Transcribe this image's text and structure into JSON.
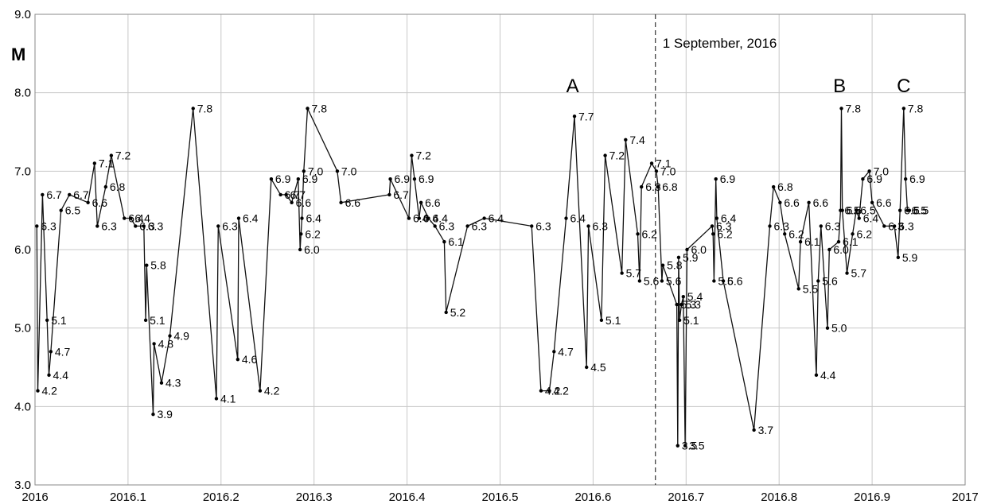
{
  "chart_data": {
    "type": "line",
    "ylabel": "M",
    "xlabel": "",
    "xlim": [
      2016,
      2017
    ],
    "ylim": [
      3.0,
      9.0
    ],
    "x_ticks": [
      "2016",
      "2016.1",
      "2016.2",
      "2016.3",
      "2016.4",
      "2016.5",
      "2016.6",
      "2016.7",
      "2016.8",
      "2016.9",
      "2017"
    ],
    "y_ticks": [
      "3.0",
      "4.0",
      "5.0",
      "6.0",
      "7.0",
      "8.0",
      "9.0"
    ],
    "grid": true,
    "vline": {
      "x": 2016.667,
      "label": "1 September, 2016"
    },
    "annotations": [
      {
        "text": "A",
        "x": 2016.578,
        "y": 8.0
      },
      {
        "text": "B",
        "x": 2016.865,
        "y": 8.0
      },
      {
        "text": "C",
        "x": 2016.934,
        "y": 8.0
      }
    ],
    "series": [
      {
        "points": [
          {
            "x": 2016.002,
            "y": 6.3,
            "label": "6.3"
          },
          {
            "x": 2016.003,
            "y": 4.2,
            "label": "4.2"
          },
          {
            "x": 2016.008,
            "y": 6.7,
            "label": "6.7"
          },
          {
            "x": 2016.013,
            "y": 5.1,
            "label": "5.1"
          },
          {
            "x": 2016.015,
            "y": 4.4,
            "label": "4.4"
          },
          {
            "x": 2016.017,
            "y": 4.7,
            "label": "4.7"
          },
          {
            "x": 2016.028,
            "y": 6.5,
            "label": "6.5"
          },
          {
            "x": 2016.037,
            "y": 6.7,
            "label": "6.7"
          },
          {
            "x": 2016.057,
            "y": 6.6,
            "label": "6.6"
          },
          {
            "x": 2016.064,
            "y": 7.1,
            "label": "7.1"
          },
          {
            "x": 2016.067,
            "y": 6.3,
            "label": "6.3"
          },
          {
            "x": 2016.076,
            "y": 6.8,
            "label": "6.8"
          },
          {
            "x": 2016.082,
            "y": 7.2,
            "label": "7.2"
          },
          {
            "x": 2016.096,
            "y": 6.4,
            "label": "6.4"
          },
          {
            "x": 2016.103,
            "y": 6.4,
            "label": "6.4"
          },
          {
            "x": 2016.108,
            "y": 6.3,
            "label": "6.3"
          },
          {
            "x": 2016.117,
            "y": 6.3,
            "label": "6.3"
          },
          {
            "x": 2016.119,
            "y": 5.1,
            "label": "5.1"
          },
          {
            "x": 2016.12,
            "y": 5.8,
            "label": "5.8"
          },
          {
            "x": 2016.127,
            "y": 3.9,
            "label": "3.9"
          },
          {
            "x": 2016.128,
            "y": 4.8,
            "label": "4.8"
          },
          {
            "x": 2016.136,
            "y": 4.3,
            "label": "4.3"
          },
          {
            "x": 2016.145,
            "y": 4.9,
            "label": "4.9"
          },
          {
            "x": 2016.17,
            "y": 7.8,
            "label": "7.8"
          },
          {
            "x": 2016.195,
            "y": 4.1,
            "label": "4.1"
          },
          {
            "x": 2016.197,
            "y": 6.3,
            "label": "6.3"
          },
          {
            "x": 2016.218,
            "y": 4.6,
            "label": "4.6"
          },
          {
            "x": 2016.219,
            "y": 6.4,
            "label": "6.4"
          },
          {
            "x": 2016.242,
            "y": 4.2,
            "label": "4.2"
          },
          {
            "x": 2016.254,
            "y": 6.9,
            "label": "6.9"
          },
          {
            "x": 2016.264,
            "y": 6.7,
            "label": "6.7"
          },
          {
            "x": 2016.27,
            "y": 6.7,
            "label": "6.7"
          },
          {
            "x": 2016.276,
            "y": 6.6,
            "label": "6.6"
          },
          {
            "x": 2016.283,
            "y": 6.9,
            "label": "6.9"
          },
          {
            "x": 2016.285,
            "y": 6.0,
            "label": "6.0"
          },
          {
            "x": 2016.286,
            "y": 6.2,
            "label": "6.2"
          },
          {
            "x": 2016.287,
            "y": 6.4,
            "label": "6.4"
          },
          {
            "x": 2016.289,
            "y": 7.0,
            "label": "7.0"
          },
          {
            "x": 2016.293,
            "y": 7.8,
            "label": "7.8"
          },
          {
            "x": 2016.325,
            "y": 7.0,
            "label": "7.0"
          },
          {
            "x": 2016.329,
            "y": 6.6,
            "label": "6.6"
          },
          {
            "x": 2016.381,
            "y": 6.7,
            "label": "6.7"
          },
          {
            "x": 2016.382,
            "y": 6.9,
            "label": "6.9"
          },
          {
            "x": 2016.402,
            "y": 6.4,
            "label": "6.4"
          },
          {
            "x": 2016.405,
            "y": 7.2,
            "label": "7.2"
          },
          {
            "x": 2016.408,
            "y": 6.9,
            "label": "6.9"
          },
          {
            "x": 2016.413,
            "y": 6.4,
            "label": "6.4"
          },
          {
            "x": 2016.415,
            "y": 6.6,
            "label": "6.6"
          },
          {
            "x": 2016.423,
            "y": 6.4,
            "label": "6.4"
          },
          {
            "x": 2016.43,
            "y": 6.3,
            "label": "6.3"
          },
          {
            "x": 2016.44,
            "y": 6.1,
            "label": "6.1"
          },
          {
            "x": 2016.442,
            "y": 5.2,
            "label": "5.2"
          },
          {
            "x": 2016.465,
            "y": 6.3,
            "label": "6.3"
          },
          {
            "x": 2016.483,
            "y": 6.4,
            "label": "6.4"
          },
          {
            "x": 2016.534,
            "y": 6.3,
            "label": "6.3"
          },
          {
            "x": 2016.544,
            "y": 4.2,
            "label": "4.2"
          },
          {
            "x": 2016.553,
            "y": 4.2,
            "label": "4.2"
          },
          {
            "x": 2016.558,
            "y": 4.7,
            "label": "4.7"
          },
          {
            "x": 2016.571,
            "y": 6.4,
            "label": "6.4"
          },
          {
            "x": 2016.58,
            "y": 7.7,
            "label": "7.7"
          },
          {
            "x": 2016.593,
            "y": 4.5,
            "label": "4.5"
          },
          {
            "x": 2016.595,
            "y": 6.3,
            "label": "6.3"
          },
          {
            "x": 2016.609,
            "y": 5.1,
            "label": "5.1"
          },
          {
            "x": 2016.613,
            "y": 7.2,
            "label": "7.2"
          },
          {
            "x": 2016.631,
            "y": 5.7,
            "label": "5.7"
          },
          {
            "x": 2016.635,
            "y": 7.4,
            "label": "7.4"
          },
          {
            "x": 2016.648,
            "y": 6.2,
            "label": "6.2"
          },
          {
            "x": 2016.65,
            "y": 5.6,
            "label": "5.6"
          },
          {
            "x": 2016.652,
            "y": 6.8,
            "label": "6.8"
          },
          {
            "x": 2016.663,
            "y": 7.1,
            "label": "7.1"
          },
          {
            "x": 2016.668,
            "y": 7.0,
            "label": "7.0"
          },
          {
            "x": 2016.67,
            "y": 6.8,
            "label": "6.8"
          },
          {
            "x": 2016.674,
            "y": 5.6,
            "label": "5.6"
          },
          {
            "x": 2016.675,
            "y": 5.8,
            "label": "5.8"
          },
          {
            "x": 2016.69,
            "y": 5.3,
            "label": "5.3"
          },
          {
            "x": 2016.691,
            "y": 3.5,
            "label": "3.5"
          },
          {
            "x": 2016.692,
            "y": 5.9,
            "label": "5.9"
          },
          {
            "x": 2016.693,
            "y": 5.1,
            "label": "5.1"
          },
          {
            "x": 2016.695,
            "y": 5.3,
            "label": "5.3"
          },
          {
            "x": 2016.697,
            "y": 5.4,
            "label": "5.4"
          },
          {
            "x": 2016.699,
            "y": 3.5,
            "label": "3.5"
          },
          {
            "x": 2016.701,
            "y": 6.0,
            "label": "6.0"
          },
          {
            "x": 2016.728,
            "y": 6.3,
            "label": "6.3"
          },
          {
            "x": 2016.729,
            "y": 6.2,
            "label": "6.2"
          },
          {
            "x": 2016.73,
            "y": 5.6,
            "label": "5.6"
          },
          {
            "x": 2016.732,
            "y": 6.9,
            "label": "6.9"
          },
          {
            "x": 2016.733,
            "y": 6.4,
            "label": "6.4"
          },
          {
            "x": 2016.74,
            "y": 5.6,
            "label": "5.6"
          },
          {
            "x": 2016.773,
            "y": 3.7,
            "label": "3.7"
          },
          {
            "x": 2016.79,
            "y": 6.3,
            "label": "6.3"
          },
          {
            "x": 2016.794,
            "y": 6.8,
            "label": "6.8"
          },
          {
            "x": 2016.801,
            "y": 6.6,
            "label": "6.6"
          },
          {
            "x": 2016.806,
            "y": 6.2,
            "label": "6.2"
          },
          {
            "x": 2016.821,
            "y": 5.5,
            "label": "5.5"
          },
          {
            "x": 2016.823,
            "y": 6.1,
            "label": "6.1"
          },
          {
            "x": 2016.832,
            "y": 6.6,
            "label": "6.6"
          },
          {
            "x": 2016.84,
            "y": 4.4,
            "label": "4.4"
          },
          {
            "x": 2016.842,
            "y": 5.6,
            "label": "5.6"
          },
          {
            "x": 2016.845,
            "y": 6.3,
            "label": "6.3"
          },
          {
            "x": 2016.852,
            "y": 5.0,
            "label": "5.0"
          },
          {
            "x": 2016.854,
            "y": 6.0,
            "label": "6.0"
          },
          {
            "x": 2016.864,
            "y": 6.1,
            "label": "6.1"
          },
          {
            "x": 2016.866,
            "y": 6.5,
            "label": "6.5"
          },
          {
            "x": 2016.867,
            "y": 7.8,
            "label": "7.8"
          },
          {
            "x": 2016.868,
            "y": 6.5,
            "label": "6.5"
          },
          {
            "x": 2016.873,
            "y": 5.7,
            "label": "5.7"
          },
          {
            "x": 2016.879,
            "y": 6.2,
            "label": "6.2"
          },
          {
            "x": 2016.883,
            "y": 6.5,
            "label": "6.5"
          },
          {
            "x": 2016.886,
            "y": 6.4,
            "label": "6.4"
          },
          {
            "x": 2016.89,
            "y": 6.9,
            "label": "6.9"
          },
          {
            "x": 2016.897,
            "y": 7.0,
            "label": "7.0"
          },
          {
            "x": 2016.9,
            "y": 6.6,
            "label": "6.6"
          },
          {
            "x": 2016.913,
            "y": 6.3,
            "label": "6.3"
          },
          {
            "x": 2016.924,
            "y": 6.3,
            "label": "6.3"
          },
          {
            "x": 2016.928,
            "y": 5.9,
            "label": "5.9"
          },
          {
            "x": 2016.93,
            "y": 6.5,
            "label": "6.5"
          },
          {
            "x": 2016.934,
            "y": 7.8,
            "label": "7.8"
          },
          {
            "x": 2016.936,
            "y": 6.9,
            "label": "6.9"
          },
          {
            "x": 2016.938,
            "y": 6.5,
            "label": "6.5"
          },
          {
            "x": 2016.94,
            "y": 6.5,
            "label": "6.5"
          }
        ]
      }
    ]
  }
}
